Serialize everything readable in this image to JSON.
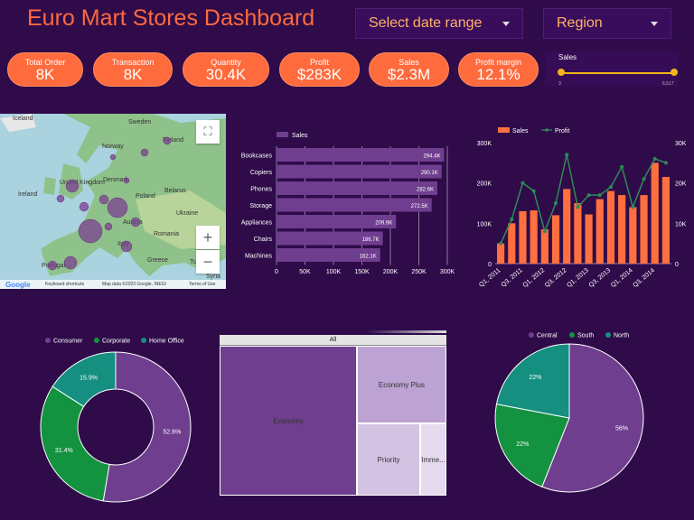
{
  "header": {
    "title": "Euro Mart Stores Dashboard",
    "date_dropdown": "Select date range",
    "region_dropdown": "Region"
  },
  "kpis": [
    {
      "label": "Total Order",
      "value": "8K"
    },
    {
      "label": "Transaction",
      "value": "8K"
    },
    {
      "label": "Quantity",
      "value": "30.4K"
    },
    {
      "label": "Profit",
      "value": "$283K"
    },
    {
      "label": "Sales",
      "value": "$2.3M"
    },
    {
      "label": "Profit margin",
      "value": "12.1%"
    }
  ],
  "sales_slider": {
    "label": "Sales",
    "min": "3",
    "max": "6,517"
  },
  "map": {
    "labels": [
      "Iceland",
      "Sweden",
      "Finland",
      "Norway",
      "Denmark",
      "United Kingdom",
      "Ireland",
      "Poland",
      "Belarus",
      "Ukraine",
      "Austria",
      "Romania",
      "Italy",
      "Greece",
      "Portugal",
      "Syria",
      "Tu"
    ],
    "footer_keyboard": "Keyboard shortcuts",
    "footer_data": "Map data ©2023 Google, INEGI",
    "footer_terms": "Terms of Use",
    "google": "Google"
  },
  "colors": {
    "background": "#2f0b4a",
    "accent": "#ff6a3d",
    "purple": "#6f3e8f",
    "bar_orange": "#ff6f3f",
    "line_green": "#2e8b57",
    "consumer": "#6f3e8f",
    "corporate": "#13923f",
    "home_office": "#158f7f"
  },
  "chart_data": [
    {
      "type": "bar",
      "orientation": "horizontal",
      "legend": [
        "Sales"
      ],
      "categories": [
        "Bookcases",
        "Copiers",
        "Phones",
        "Storage",
        "Appliances",
        "Chairs",
        "Machines"
      ],
      "values": [
        294.4,
        290.1,
        282.6,
        272.5,
        209.9,
        186.7,
        182.1
      ],
      "data_labels": [
        "294.4K",
        "290.1K",
        "282.6K",
        "272.5K",
        "209.9K",
        "186.7K",
        "182.1K"
      ],
      "xlim": [
        0,
        300
      ],
      "xticks": [
        "0",
        "50K",
        "100K",
        "150K",
        "200K",
        "250K",
        "300K"
      ]
    },
    {
      "type": "bar",
      "combo": "line",
      "legend": [
        "Sales",
        "Profit"
      ],
      "x": [
        "Q1, 2011",
        "Q2, 2011",
        "Q3, 2011",
        "Q4, 2011",
        "Q1, 2012",
        "Q2, 2012",
        "Q3, 2012",
        "Q4, 2012",
        "Q1, 2013",
        "Q2, 2013",
        "Q3, 2013",
        "Q4, 2013",
        "Q1, 2014",
        "Q2, 2014",
        "Q3, 2014",
        "Q4, 2014"
      ],
      "xtick_labels": [
        "Q1, 2011",
        "Q3, 2011",
        "Q1, 2012",
        "Q3, 2012",
        "Q1, 2013",
        "Q3, 2013",
        "Q1, 2014",
        "Q3, 2014"
      ],
      "series": [
        {
          "name": "Sales",
          "values": [
            50,
            100,
            130,
            132,
            85,
            120,
            185,
            150,
            122,
            160,
            180,
            170,
            140,
            170,
            250,
            215
          ]
        },
        {
          "name": "Profit",
          "values": [
            5,
            11,
            20,
            18,
            8,
            15,
            27,
            14,
            17,
            17,
            19,
            24,
            14,
            21,
            26,
            25
          ]
        }
      ],
      "ylim_left": [
        0,
        300
      ],
      "yticks_left": [
        "0",
        "100K",
        "200K",
        "300K"
      ],
      "ylim_right": [
        0,
        30
      ],
      "yticks_right": [
        "0",
        "10K",
        "20K",
        "30K"
      ]
    },
    {
      "type": "pie",
      "donut": true,
      "legend": [
        "Consumer",
        "Corporate",
        "Home Office"
      ],
      "values": [
        52.6,
        31.4,
        15.9
      ],
      "data_labels": [
        "52.6%",
        "31.4%",
        "15.9%"
      ]
    },
    {
      "type": "table",
      "treemap": true,
      "root": "All",
      "categories": [
        "Economy",
        "Economy Plus",
        "Priority",
        "Imme..."
      ],
      "values": [
        151,
        99,
        70,
        28
      ]
    },
    {
      "type": "pie",
      "legend": [
        "Central",
        "South",
        "North"
      ],
      "values": [
        56,
        22,
        22
      ],
      "data_labels": [
        "56%",
        "22%",
        "22%"
      ]
    }
  ]
}
